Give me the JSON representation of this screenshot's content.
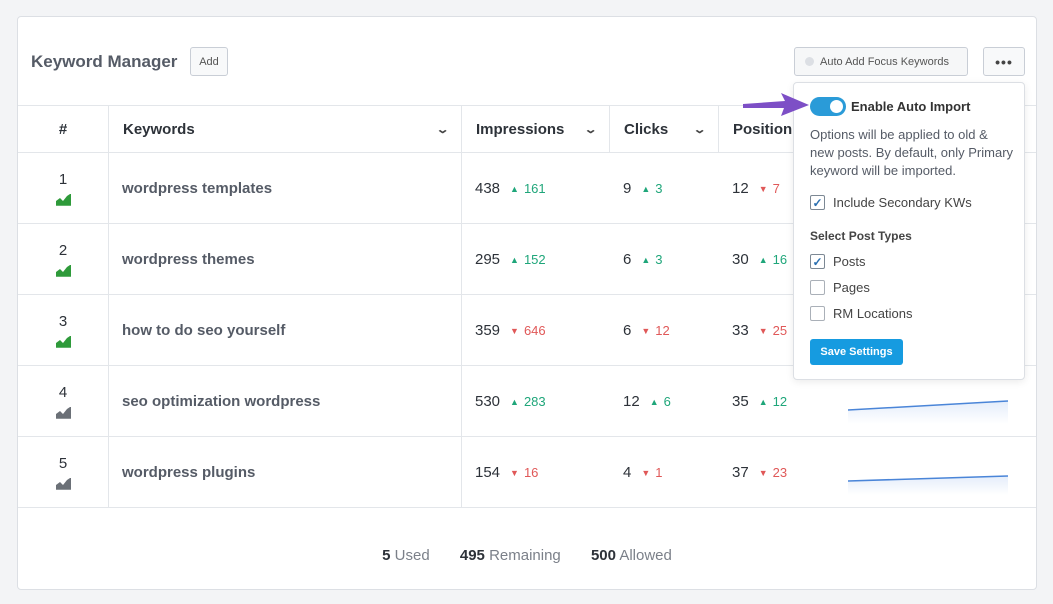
{
  "header": {
    "title": "Keyword Manager",
    "add_label": "Add",
    "auto_add_label": "Auto Add Focus Keywords",
    "more_label": "•••"
  },
  "columns": {
    "hash": "#",
    "keywords": "Keywords",
    "impressions": "Impressions",
    "clicks": "Clicks",
    "position": "Position"
  },
  "rows": [
    {
      "rank": "1",
      "trend": "up",
      "keyword": "wordpress templates",
      "impressions": "438",
      "imp_delta": "161",
      "imp_dir": "up",
      "clicks": "9",
      "clk_delta": "3",
      "clk_dir": "up",
      "position": "12",
      "pos_delta": "7",
      "pos_dir": "down"
    },
    {
      "rank": "2",
      "trend": "up",
      "keyword": "wordpress themes",
      "impressions": "295",
      "imp_delta": "152",
      "imp_dir": "up",
      "clicks": "6",
      "clk_delta": "3",
      "clk_dir": "up",
      "position": "30",
      "pos_delta": "16",
      "pos_dir": "up"
    },
    {
      "rank": "3",
      "trend": "up",
      "keyword": "how to do seo yourself",
      "impressions": "359",
      "imp_delta": "646",
      "imp_dir": "down",
      "clicks": "6",
      "clk_delta": "12",
      "clk_dir": "down",
      "position": "33",
      "pos_delta": "25",
      "pos_dir": "down"
    },
    {
      "rank": "4",
      "trend": "flat",
      "keyword": "seo optimization wordpress",
      "impressions": "530",
      "imp_delta": "283",
      "imp_dir": "up",
      "clicks": "12",
      "clk_delta": "6",
      "clk_dir": "up",
      "position": "35",
      "pos_delta": "12",
      "pos_dir": "up"
    },
    {
      "rank": "5",
      "trend": "flat",
      "keyword": "wordpress plugins",
      "impressions": "154",
      "imp_delta": "16",
      "imp_dir": "down",
      "clicks": "4",
      "clk_delta": "1",
      "clk_dir": "down",
      "position": "37",
      "pos_delta": "23",
      "pos_dir": "down"
    }
  ],
  "footer": {
    "used_num": "5",
    "used_label": "Used",
    "remaining_num": "495",
    "remaining_label": "Remaining",
    "allowed_num": "500",
    "allowed_label": "Allowed"
  },
  "popup": {
    "toggle_label": "Enable Auto Import",
    "toggle_on": true,
    "description": "Options will be applied to old & new posts. By default, only Primary keyword will be imported.",
    "include_secondary_label": "Include Secondary KWs",
    "include_secondary_checked": true,
    "post_types_title": "Select Post Types",
    "post_types": [
      {
        "label": "Posts",
        "checked": true
      },
      {
        "label": "Pages",
        "checked": false
      },
      {
        "label": "RM Locations",
        "checked": false
      }
    ],
    "save_label": "Save Settings"
  },
  "colors": {
    "accent": "#169be0",
    "up": "#1fa67a",
    "down": "#e05858",
    "arrow": "#7d4fc6"
  }
}
